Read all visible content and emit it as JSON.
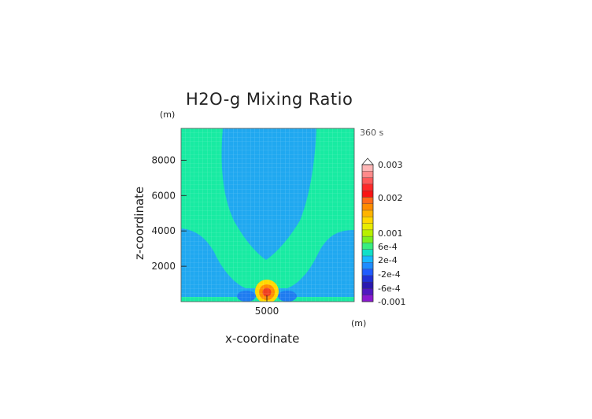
{
  "chart_data": {
    "type": "heatmap",
    "title": "H2O-g Mixing Ratio",
    "xlabel": "x-coordinate",
    "ylabel": "z-coordinate",
    "x_unit": "(m)",
    "z_unit": "(m)",
    "time_label": "360 s",
    "x_ticks": [
      5000
    ],
    "y_ticks": [
      2000,
      4000,
      6000,
      8000
    ],
    "xlim": [
      0,
      10000
    ],
    "ylim": [
      0,
      9800
    ],
    "grid": true,
    "colorbar": {
      "position": "right",
      "labels": [
        "0.003",
        "0.002",
        "0.001",
        "6e-4",
        "2e-4",
        "-2e-4",
        "-6e-4",
        "-0.001"
      ],
      "colors": [
        "#FFB6B6",
        "#FF8A8A",
        "#FF5A5A",
        "#FF2A2A",
        "#F81414",
        "#FF6A1A",
        "#FF8C00",
        "#FFB400",
        "#FFD800",
        "#E8EC00",
        "#B8F000",
        "#7CF020",
        "#38EE80",
        "#10E0C8",
        "#18B8FF",
        "#1E8CFF",
        "#205CFF",
        "#2030D8",
        "#2A18B0",
        "#5018C0",
        "#8A18D0"
      ]
    },
    "fields": {
      "background": "#20A8F0",
      "plume": "#18EBA2",
      "core_low": "#FFD800",
      "core_mid": "#FF8C00",
      "core_high": "#F04020",
      "negative": "#1E7CF0"
    }
  }
}
